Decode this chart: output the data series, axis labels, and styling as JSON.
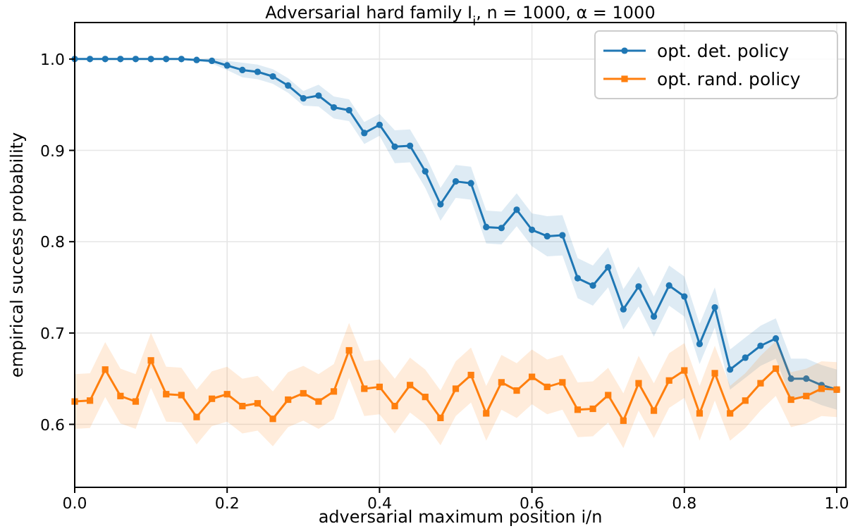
{
  "chart_data": {
    "type": "line",
    "title": "Adversarial hard family I$_{i}$, n = 1000, α = 1000",
    "xlabel": "adversarial maximum position i/n",
    "ylabel": "empirical success probability",
    "x": [
      0,
      0.02,
      0.04,
      0.06,
      0.08,
      0.1,
      0.12,
      0.14,
      0.16,
      0.18,
      0.2,
      0.22,
      0.24,
      0.26,
      0.28,
      0.3,
      0.32,
      0.34,
      0.36,
      0.38,
      0.4,
      0.42,
      0.44,
      0.46,
      0.48,
      0.5,
      0.52,
      0.54,
      0.56,
      0.58,
      0.6,
      0.62,
      0.64,
      0.66,
      0.68,
      0.7,
      0.72,
      0.74,
      0.76,
      0.78,
      0.8,
      0.82,
      0.84,
      0.86,
      0.88,
      0.9,
      0.92,
      0.94,
      0.96,
      0.98,
      1
    ],
    "series": [
      {
        "name": "opt. det. policy",
        "color": "#1f77b4",
        "marker": "circle",
        "values": [
          1,
          1,
          1,
          1,
          1,
          1,
          1,
          1,
          0.999,
          0.998,
          0.993,
          0.988,
          0.986,
          0.981,
          0.971,
          0.957,
          0.96,
          0.947,
          0.944,
          0.919,
          0.928,
          0.904,
          0.905,
          0.877,
          0.841,
          0.866,
          0.864,
          0.816,
          0.815,
          0.835,
          0.813,
          0.806,
          0.807,
          0.76,
          0.752,
          0.772,
          0.726,
          0.751,
          0.718,
          0.752,
          0.74,
          0.688,
          0.728,
          0.66,
          0.673,
          0.686,
          0.694,
          0.65,
          0.65,
          0.643,
          0.638
        ],
        "lower": [
          1,
          1,
          1,
          1,
          1,
          1,
          1,
          1,
          0.999,
          0.995,
          0.988,
          0.98,
          0.978,
          0.973,
          0.963,
          0.949,
          0.948,
          0.935,
          0.932,
          0.907,
          0.916,
          0.886,
          0.887,
          0.859,
          0.823,
          0.848,
          0.846,
          0.798,
          0.797,
          0.817,
          0.795,
          0.784,
          0.785,
          0.738,
          0.73,
          0.75,
          0.704,
          0.729,
          0.696,
          0.73,
          0.718,
          0.666,
          0.706,
          0.638,
          0.651,
          0.664,
          0.672,
          0.628,
          0.628,
          0.621,
          0.616
        ],
        "upper": [
          1,
          1,
          1,
          1,
          1,
          1,
          1,
          1,
          0.999,
          1.001,
          0.998,
          0.996,
          0.994,
          0.989,
          0.979,
          0.965,
          0.972,
          0.959,
          0.956,
          0.931,
          0.94,
          0.922,
          0.923,
          0.895,
          0.859,
          0.884,
          0.882,
          0.834,
          0.833,
          0.853,
          0.831,
          0.828,
          0.829,
          0.782,
          0.774,
          0.794,
          0.748,
          0.773,
          0.74,
          0.774,
          0.762,
          0.71,
          0.75,
          0.682,
          0.695,
          0.708,
          0.716,
          0.672,
          0.672,
          0.665,
          0.66
        ]
      },
      {
        "name": "opt. rand. policy",
        "color": "#ff7f0e",
        "marker": "square",
        "values": [
          0.625,
          0.626,
          0.66,
          0.631,
          0.625,
          0.67,
          0.633,
          0.632,
          0.608,
          0.628,
          0.633,
          0.62,
          0.623,
          0.606,
          0.627,
          0.634,
          0.625,
          0.636,
          0.681,
          0.639,
          0.641,
          0.62,
          0.643,
          0.63,
          0.607,
          0.639,
          0.654,
          0.612,
          0.646,
          0.637,
          0.652,
          0.641,
          0.646,
          0.616,
          0.617,
          0.632,
          0.604,
          0.645,
          0.615,
          0.648,
          0.659,
          0.612,
          0.656,
          0.612,
          0.626,
          0.645,
          0.661,
          0.627,
          0.631,
          0.639,
          0.638
        ],
        "lower": [
          0.595,
          0.596,
          0.63,
          0.601,
          0.595,
          0.64,
          0.603,
          0.602,
          0.578,
          0.598,
          0.603,
          0.59,
          0.593,
          0.576,
          0.597,
          0.604,
          0.595,
          0.606,
          0.651,
          0.609,
          0.611,
          0.59,
          0.613,
          0.6,
          0.577,
          0.609,
          0.624,
          0.582,
          0.616,
          0.607,
          0.622,
          0.611,
          0.616,
          0.586,
          0.587,
          0.602,
          0.574,
          0.615,
          0.585,
          0.618,
          0.629,
          0.582,
          0.626,
          0.582,
          0.596,
          0.615,
          0.631,
          0.597,
          0.601,
          0.609,
          0.608
        ],
        "upper": [
          0.655,
          0.656,
          0.69,
          0.661,
          0.655,
          0.7,
          0.663,
          0.662,
          0.638,
          0.658,
          0.663,
          0.65,
          0.653,
          0.636,
          0.657,
          0.664,
          0.655,
          0.666,
          0.711,
          0.669,
          0.671,
          0.65,
          0.673,
          0.66,
          0.637,
          0.669,
          0.684,
          0.642,
          0.676,
          0.667,
          0.682,
          0.671,
          0.676,
          0.646,
          0.647,
          0.662,
          0.634,
          0.675,
          0.645,
          0.678,
          0.689,
          0.642,
          0.686,
          0.642,
          0.656,
          0.675,
          0.691,
          0.657,
          0.661,
          0.669,
          0.668
        ]
      }
    ],
    "xlim": [
      0,
      1.012
    ],
    "xticks": [
      {
        "value": 0,
        "label": "0.0"
      },
      0.2,
      0.4,
      0.6,
      0.8,
      {
        "value": 1,
        "label": "1.0"
      }
    ],
    "ylim": [
      0.531,
      1.04
    ],
    "yticks": [
      0.6,
      0.7,
      0.8,
      0.9,
      {
        "value": 1,
        "label": "1.0"
      }
    ],
    "grid": true,
    "legend": "top right",
    "line_style": "solid"
  }
}
